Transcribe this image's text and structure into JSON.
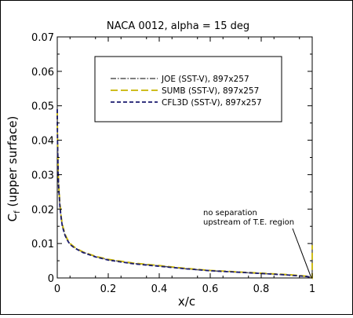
{
  "chart_data": {
    "type": "line",
    "title": "NACA 0012, alpha = 15 deg",
    "xlabel": "x/c",
    "ylabel_main": "C",
    "ylabel_sub": "f",
    "ylabel_rest": " (upper surface)",
    "xlim": [
      0,
      1
    ],
    "ylim": [
      0,
      0.07
    ],
    "xticks": [
      0,
      0.2,
      0.4,
      0.6,
      0.8,
      1
    ],
    "xtick_labels": [
      "0",
      "0.2",
      "0.4",
      "0.6",
      "0.8",
      "1"
    ],
    "yticks": [
      0,
      0.01,
      0.02,
      0.03,
      0.04,
      0.05,
      0.06,
      0.07
    ],
    "ytick_labels": [
      "0",
      "0.01",
      "0.02",
      "0.03",
      "0.04",
      "0.05",
      "0.06",
      "0.07"
    ],
    "grid": false,
    "legend_position": "top-center",
    "series": [
      {
        "name": "JOE (SST-V), 897x257",
        "color": "#555555",
        "dash": "dashdot",
        "x": [
          0,
          0.001,
          0.003,
          0.005,
          0.01,
          0.015,
          0.02,
          0.03,
          0.04,
          0.05,
          0.07,
          0.1,
          0.15,
          0.2,
          0.3,
          0.4,
          0.5,
          0.6,
          0.7,
          0.8,
          0.9,
          0.95,
          0.98,
          0.995,
          1.0
        ],
        "y": [
          0.049,
          0.04,
          0.032,
          0.027,
          0.021,
          0.0175,
          0.015,
          0.0125,
          0.011,
          0.0098,
          0.0087,
          0.0075,
          0.0062,
          0.0053,
          0.0042,
          0.0035,
          0.0027,
          0.0021,
          0.0017,
          0.0013,
          0.0009,
          0.0006,
          0.0004,
          0.0002,
          0.0
        ]
      },
      {
        "name": "SUMB (SST-V), 897x257",
        "color": "#c8b400",
        "dash": "longdash",
        "x": [
          0,
          0.001,
          0.003,
          0.005,
          0.01,
          0.015,
          0.02,
          0.03,
          0.04,
          0.05,
          0.07,
          0.1,
          0.15,
          0.2,
          0.3,
          0.4,
          0.5,
          0.6,
          0.7,
          0.8,
          0.9,
          0.95,
          0.98,
          0.995,
          1.0,
          1.0
        ],
        "y": [
          0.048,
          0.041,
          0.033,
          0.028,
          0.022,
          0.018,
          0.0155,
          0.0128,
          0.0112,
          0.01,
          0.0088,
          0.0076,
          0.0063,
          0.0054,
          0.0043,
          0.0036,
          0.0028,
          0.0022,
          0.0018,
          0.0014,
          0.001,
          0.0007,
          0.0005,
          0.0003,
          0.0,
          0.0095
        ]
      },
      {
        "name": "CFL3D (SST-V), 897x257",
        "color": "#1a1a6e",
        "dash": "dash",
        "x": [
          0,
          0.001,
          0.003,
          0.005,
          0.01,
          0.015,
          0.02,
          0.03,
          0.04,
          0.05,
          0.07,
          0.1,
          0.15,
          0.2,
          0.3,
          0.4,
          0.5,
          0.6,
          0.7,
          0.8,
          0.9,
          0.95,
          0.98,
          0.995,
          1.0
        ],
        "y": [
          0.049,
          0.04,
          0.032,
          0.027,
          0.021,
          0.0175,
          0.015,
          0.0124,
          0.0109,
          0.0097,
          0.0086,
          0.0074,
          0.0061,
          0.0052,
          0.0041,
          0.0034,
          0.0027,
          0.0021,
          0.0017,
          0.0013,
          0.0009,
          0.0006,
          0.0004,
          0.0002,
          0.0
        ]
      }
    ],
    "annotation": {
      "lines": [
        "no separation",
        "upstream of T.E. region"
      ],
      "points_to": [
        0.995,
        0.0003
      ]
    }
  }
}
